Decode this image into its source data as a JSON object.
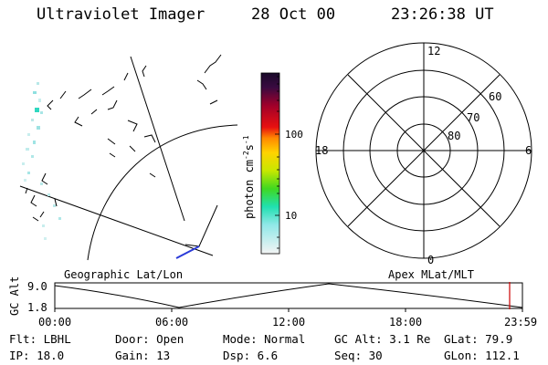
{
  "header": {
    "instrument": "Ultraviolet Imager",
    "date": "28 Oct 00",
    "time": "23:26:38 UT"
  },
  "colorbar": {
    "unit_label": "photon cm",
    "unit_sup1": "-2",
    "unit_mid": "s",
    "unit_sup2": "-1",
    "ticks": [
      "100",
      "10"
    ]
  },
  "polar_plot": {
    "mlt_labels": {
      "top": "12",
      "bottom": "0",
      "left": "18",
      "right": "6"
    },
    "mlat_labels": [
      "60",
      "70",
      "80"
    ]
  },
  "panel_labels": {
    "left": "Geographic Lat/Lon",
    "right": "Apex MLat/MLT"
  },
  "altitude_plot": {
    "axis_title": "GC Alt",
    "ytick_top": "9.0",
    "ytick_bottom": "1.8",
    "xticks": [
      "00:00",
      "06:00",
      "12:00",
      "18:00",
      "23:59"
    ],
    "line_color": "#000000",
    "marker_color": "#cc0000"
  },
  "info": {
    "flt": "Flt: LBHL",
    "ip": "IP: 18.0",
    "door": "Door: Open",
    "gain": "Gain: 13",
    "mode": "Mode: Normal",
    "dsp": "Dsp:     6.6",
    "gcalt": "GC Alt: 3.1 Re",
    "seq": "Seq: 30",
    "glat": "GLat:  79.9",
    "glon": "GLon: 112.1"
  }
}
